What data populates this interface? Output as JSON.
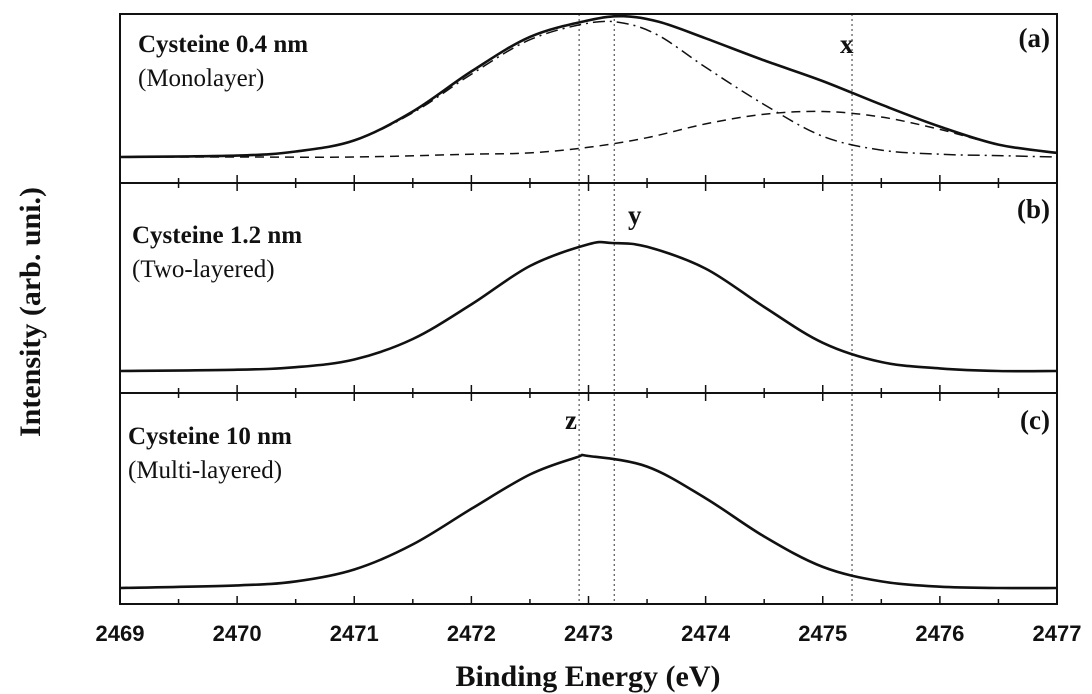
{
  "chart_data": {
    "type": "line",
    "xlabel": "Binding Energy (eV)",
    "ylabel": "Intensity (arb. uni.)",
    "xlim": [
      2469,
      2477
    ],
    "x_ticks": [
      "2469",
      "2470",
      "2471",
      "2472",
      "2473",
      "2474",
      "2475",
      "2476",
      "2477"
    ],
    "vertical_reference_lines": [
      2472.92,
      2473.22,
      2475.25
    ],
    "panels": [
      {
        "tag": "(a)",
        "label_main": "Cysteine 0.4 nm",
        "label_sub": "(Monolayer)",
        "peak_marker": "x",
        "ylim": [
          0,
          1.05
        ],
        "series": [
          {
            "style": "solid",
            "x": [
              2469.0,
              2470.0,
              2470.5,
              2471.0,
              2471.5,
              2472.0,
              2472.5,
              2473.0,
              2473.3,
              2473.6,
              2474.0,
              2474.5,
              2475.0,
              2475.5,
              2476.0,
              2476.5,
              2477.0
            ],
            "y": [
              0.0,
              0.01,
              0.04,
              0.12,
              0.33,
              0.62,
              0.87,
              0.99,
              1.02,
              0.98,
              0.86,
              0.7,
              0.55,
              0.38,
              0.22,
              0.09,
              0.03
            ]
          },
          {
            "style": "dashdot",
            "x": [
              2469.0,
              2470.0,
              2470.5,
              2471.0,
              2471.5,
              2472.0,
              2472.5,
              2473.0,
              2473.3,
              2473.6,
              2474.0,
              2474.5,
              2475.0,
              2475.5,
              2476.0,
              2476.5,
              2477.0
            ],
            "y": [
              0.0,
              0.01,
              0.04,
              0.12,
              0.32,
              0.6,
              0.85,
              0.97,
              0.97,
              0.88,
              0.65,
              0.38,
              0.15,
              0.05,
              0.02,
              0.01,
              0.0
            ]
          },
          {
            "style": "dashed",
            "x": [
              2469.0,
              2470.0,
              2471.0,
              2472.0,
              2472.5,
              2473.0,
              2473.5,
              2474.0,
              2474.5,
              2475.0,
              2475.5,
              2476.0,
              2476.5,
              2477.0
            ],
            "y": [
              0.0,
              0.0,
              0.0,
              0.02,
              0.03,
              0.07,
              0.14,
              0.24,
              0.31,
              0.33,
              0.29,
              0.2,
              0.09,
              0.03
            ]
          }
        ]
      },
      {
        "tag": "(b)",
        "label_main": "Cysteine 1.2 nm",
        "label_sub": "(Two-layered)",
        "peak_marker": "y",
        "ylim": [
          0,
          1.05
        ],
        "series": [
          {
            "style": "solid",
            "x": [
              2469.0,
              2470.0,
              2470.5,
              2471.0,
              2471.5,
              2472.0,
              2472.5,
              2473.0,
              2473.2,
              2473.5,
              2474.0,
              2474.5,
              2475.0,
              2475.5,
              2476.0,
              2476.5,
              2477.0
            ],
            "y": [
              0.0,
              0.01,
              0.03,
              0.09,
              0.25,
              0.52,
              0.82,
              0.99,
              1.0,
              0.97,
              0.8,
              0.5,
              0.22,
              0.07,
              0.02,
              0.0,
              0.0
            ]
          }
        ]
      },
      {
        "tag": "(c)",
        "label_main": "Cysteine 10 nm",
        "label_sub": "(Multi-layered)",
        "peak_marker": "z",
        "ylim": [
          0,
          1.05
        ],
        "series": [
          {
            "style": "solid",
            "x": [
              2469.0,
              2470.0,
              2470.5,
              2471.0,
              2471.5,
              2472.0,
              2472.5,
              2472.9,
              2473.0,
              2473.5,
              2474.0,
              2474.5,
              2475.0,
              2475.5,
              2476.0,
              2476.5,
              2477.0
            ],
            "y": [
              0.0,
              0.02,
              0.05,
              0.14,
              0.33,
              0.6,
              0.86,
              0.99,
              1.0,
              0.92,
              0.68,
              0.39,
              0.16,
              0.05,
              0.01,
              0.0,
              0.0
            ]
          }
        ]
      }
    ]
  }
}
